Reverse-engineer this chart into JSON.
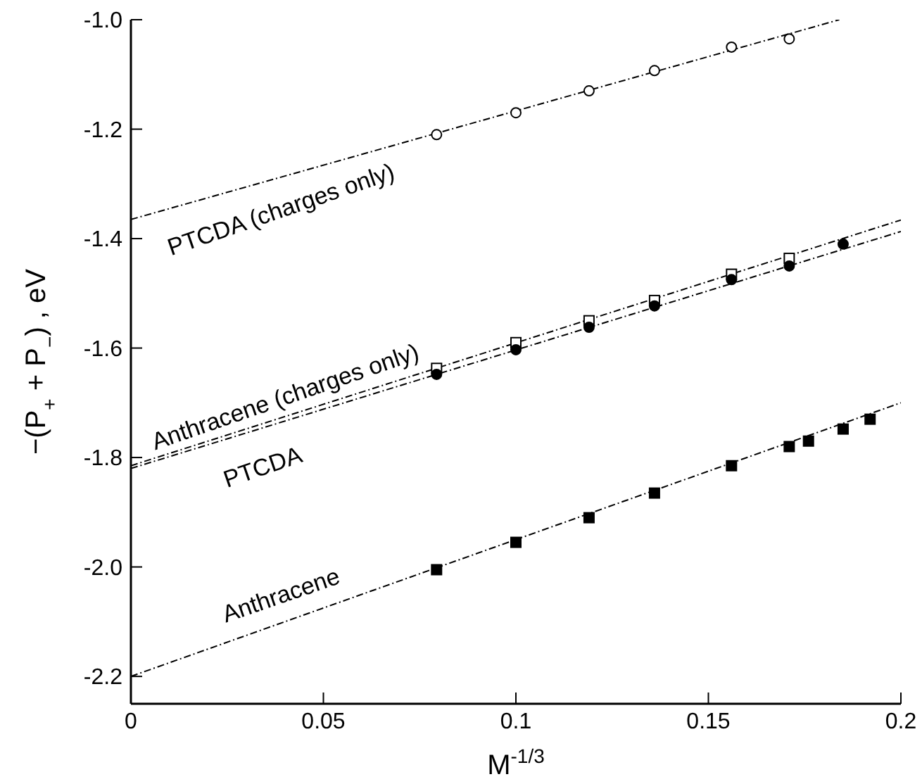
{
  "chart_data": {
    "type": "scatter",
    "xlabel": "M$^{-1/3}$",
    "ylabel": "−(P$_{+}$ + P$_{−}$) , eV",
    "xlim": [
      0,
      0.2
    ],
    "xticks": [
      0,
      0.05,
      0.1,
      0.15,
      0.2
    ],
    "ylim": [
      -2.25,
      -1.0
    ],
    "yticks": [
      {
        "value": -2.2,
        "label": "-2.2"
      },
      {
        "value": -2.0,
        "label": "-2.0"
      },
      {
        "value": -1.8,
        "label": "-1.8"
      },
      {
        "value": -1.6,
        "label": "-1.6"
      },
      {
        "value": -1.4,
        "label": "-1.4"
      },
      {
        "value": -1.2,
        "label": "-1.2"
      },
      {
        "value": -1.0,
        "label": "-1.0"
      }
    ],
    "series": [
      {
        "marker": "circle",
        "color": "#ffffff",
        "x": [
          0.0794,
          0.1,
          0.119,
          0.136,
          0.156,
          0.171
        ],
        "values": [
          -1.21,
          -1.17,
          -1.13,
          -1.093,
          -1.05,
          -1.035
        ]
      },
      {
        "marker": "square",
        "color": "#ffffff",
        "x": [
          0.0794,
          0.1,
          0.119,
          0.136,
          0.156,
          0.171
        ],
        "values": [
          -1.637,
          -1.59,
          -1.55,
          -1.513,
          -1.465,
          -1.436
        ]
      },
      {
        "marker": "circle",
        "color": "#000000",
        "x": [
          0.0794,
          0.1,
          0.119,
          0.136,
          0.156,
          0.171,
          0.185
        ],
        "values": [
          -1.648,
          -1.603,
          -1.562,
          -1.523,
          -1.475,
          -1.45,
          -1.41
        ]
      },
      {
        "marker": "square",
        "color": "#000000",
        "x": [
          0.0794,
          0.1,
          0.119,
          0.136,
          0.156,
          0.171,
          0.176,
          0.185,
          0.192
        ],
        "values": [
          -2.005,
          -1.955,
          -1.91,
          -1.865,
          -1.815,
          -1.78,
          -1.77,
          -1.748,
          -1.73
        ]
      },
      {
        "type": "line",
        "line_style": "dashed",
        "marker": "none",
        "color": "#000000",
        "x": [
          0,
          0.184
        ],
        "values": [
          -1.365,
          -1.0
        ]
      },
      {
        "type": "line",
        "line_style": "dashed",
        "marker": "none",
        "color": "#000000",
        "x": [
          0,
          0.2
        ],
        "values": [
          -1.815,
          -1.366
        ]
      },
      {
        "type": "line",
        "line_style": "dashed",
        "marker": "none",
        "color": "#000000",
        "x": [
          0,
          0.2
        ],
        "values": [
          -1.82,
          -1.387
        ]
      },
      {
        "type": "line",
        "line_style": "dashed",
        "marker": "none",
        "color": "#000000",
        "x": [
          0,
          0.2
        ],
        "values": [
          -2.2,
          -1.7
        ]
      }
    ],
    "annotations": [
      "PTCDA (charges only)",
      "Anthracene (charges only)",
      "PTCDA",
      "Anthracene"
    ]
  }
}
